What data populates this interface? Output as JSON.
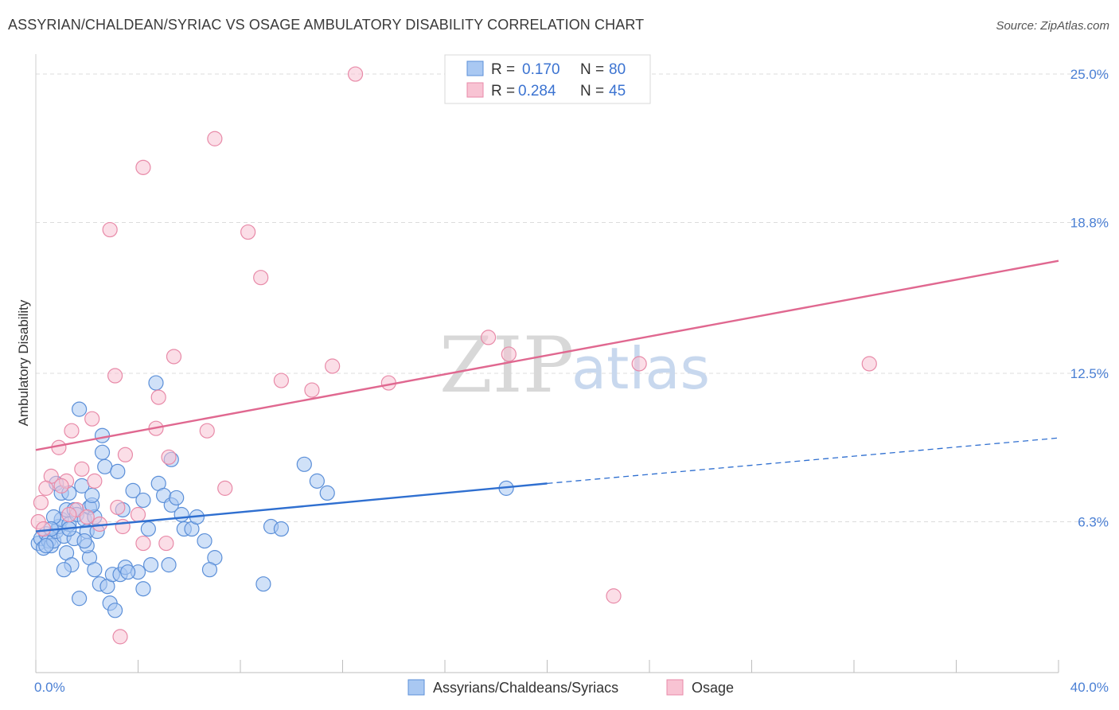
{
  "header": {
    "title": "ASSYRIAN/CHALDEAN/SYRIAC VS OSAGE AMBULATORY DISABILITY CORRELATION CHART",
    "source": "Source: ZipAtlas.com"
  },
  "watermark": {
    "zip": "ZIP",
    "atlas": "atlas"
  },
  "legend": {
    "series": [
      {
        "r_label": "R =",
        "r_value": "0.170",
        "n_label": "N =",
        "n_value": "80"
      },
      {
        "r_label": "R =",
        "r_value": "0.284",
        "n_label": "N =",
        "n_value": "45"
      }
    ]
  },
  "bottom_legend": {
    "items": [
      {
        "label": "Assyrians/Chaldeans/Syriacs"
      },
      {
        "label": "Osage"
      }
    ]
  },
  "chart_data": {
    "type": "scatter",
    "title": "ASSYRIAN/CHALDEAN/SYRIAC VS OSAGE AMBULATORY DISABILITY CORRELATION CHART",
    "xlabel": "",
    "ylabel": "Ambulatory Disability",
    "xlim": [
      0,
      40
    ],
    "ylim": [
      0,
      25.5
    ],
    "x_tick_labels": {
      "min": "0.0%",
      "max": "40.0%"
    },
    "y_ticks": [
      6.3,
      12.5,
      18.8,
      25.0
    ],
    "y_tick_labels": [
      "6.3%",
      "12.5%",
      "18.8%",
      "25.0%"
    ],
    "grid": true,
    "colors": {
      "blue_fill": "#a9c8f2",
      "blue_stroke": "#5b8fd8",
      "blue_line": "#2f6fd0",
      "pink_fill": "#f8c3d3",
      "pink_stroke": "#e88aa8",
      "pink_line": "#e06890",
      "tick_text": "#4a7fd4",
      "grid": "#dcdcdc"
    },
    "series": [
      {
        "name": "Assyrians/Chaldeans/Syriacs",
        "color": "blue",
        "trend": {
          "x0": 0,
          "y0": 5.9,
          "x1": 20,
          "y1": 7.9,
          "dash_x1": 40,
          "dash_y1": 9.8
        },
        "points": [
          [
            0.1,
            5.4
          ],
          [
            0.2,
            5.6
          ],
          [
            0.3,
            5.2
          ],
          [
            0.4,
            5.8
          ],
          [
            0.5,
            5.5
          ],
          [
            0.6,
            5.3
          ],
          [
            0.7,
            5.5
          ],
          [
            0.8,
            5.9
          ],
          [
            0.9,
            6.1
          ],
          [
            1.0,
            6.4
          ],
          [
            0.7,
            6.5
          ],
          [
            1.1,
            5.7
          ],
          [
            1.2,
            6.8
          ],
          [
            1.3,
            6.2
          ],
          [
            0.8,
            7.9
          ],
          [
            1.0,
            7.5
          ],
          [
            1.3,
            7.5
          ],
          [
            1.5,
            6.8
          ],
          [
            1.6,
            6.6
          ],
          [
            1.8,
            7.8
          ],
          [
            1.9,
            6.4
          ],
          [
            2.1,
            6.9
          ],
          [
            2.3,
            6.5
          ],
          [
            2.2,
            7.0
          ],
          [
            2.0,
            5.9
          ],
          [
            1.5,
            5.6
          ],
          [
            1.2,
            5.0
          ],
          [
            1.4,
            4.5
          ],
          [
            1.1,
            4.3
          ],
          [
            2.1,
            4.8
          ],
          [
            2.3,
            4.3
          ],
          [
            2.5,
            3.7
          ],
          [
            2.8,
            3.6
          ],
          [
            3.0,
            4.1
          ],
          [
            3.3,
            4.1
          ],
          [
            3.5,
            4.4
          ],
          [
            4.0,
            4.2
          ],
          [
            4.5,
            4.5
          ],
          [
            4.2,
            3.5
          ],
          [
            3.6,
            4.2
          ],
          [
            1.7,
            11.0
          ],
          [
            2.6,
            9.9
          ],
          [
            2.6,
            9.2
          ],
          [
            2.7,
            8.6
          ],
          [
            3.2,
            8.4
          ],
          [
            3.8,
            7.6
          ],
          [
            4.2,
            7.2
          ],
          [
            4.8,
            7.9
          ],
          [
            5.0,
            7.4
          ],
          [
            5.3,
            7.0
          ],
          [
            5.5,
            7.3
          ],
          [
            5.7,
            6.6
          ],
          [
            5.8,
            6.0
          ],
          [
            6.1,
            6.0
          ],
          [
            6.3,
            6.5
          ],
          [
            6.6,
            5.5
          ],
          [
            7.0,
            4.8
          ],
          [
            6.8,
            4.3
          ],
          [
            5.2,
            4.5
          ],
          [
            4.4,
            6.0
          ],
          [
            3.4,
            6.8
          ],
          [
            2.4,
            5.9
          ],
          [
            2.0,
            5.3
          ],
          [
            2.9,
            2.9
          ],
          [
            3.1,
            2.6
          ],
          [
            1.7,
            3.1
          ],
          [
            1.9,
            5.5
          ],
          [
            4.7,
            12.1
          ],
          [
            5.3,
            8.9
          ],
          [
            10.5,
            8.7
          ],
          [
            11.0,
            8.0
          ],
          [
            11.4,
            7.5
          ],
          [
            9.2,
            6.1
          ],
          [
            9.6,
            6.0
          ],
          [
            8.9,
            3.7
          ],
          [
            18.4,
            7.7
          ],
          [
            0.6,
            6.0
          ],
          [
            0.4,
            5.3
          ],
          [
            1.3,
            6.0
          ],
          [
            2.2,
            7.4
          ]
        ]
      },
      {
        "name": "Osage",
        "color": "pink",
        "trend": {
          "x0": 0,
          "y0": 9.3,
          "x1": 40,
          "y1": 17.2
        },
        "points": [
          [
            12.5,
            25.0
          ],
          [
            7.0,
            22.3
          ],
          [
            4.2,
            21.1
          ],
          [
            2.9,
            18.5
          ],
          [
            8.3,
            18.4
          ],
          [
            8.8,
            16.5
          ],
          [
            17.7,
            14.0
          ],
          [
            18.5,
            13.3
          ],
          [
            23.6,
            12.9
          ],
          [
            32.6,
            12.9
          ],
          [
            5.4,
            13.2
          ],
          [
            3.1,
            12.4
          ],
          [
            9.6,
            12.2
          ],
          [
            11.6,
            12.8
          ],
          [
            10.8,
            11.8
          ],
          [
            13.8,
            12.1
          ],
          [
            4.8,
            11.5
          ],
          [
            6.7,
            10.1
          ],
          [
            4.7,
            10.2
          ],
          [
            2.2,
            10.6
          ],
          [
            1.4,
            10.1
          ],
          [
            0.9,
            9.4
          ],
          [
            3.5,
            9.1
          ],
          [
            5.2,
            9.0
          ],
          [
            1.8,
            8.5
          ],
          [
            0.6,
            8.2
          ],
          [
            1.2,
            8.0
          ],
          [
            2.3,
            8.0
          ],
          [
            0.4,
            7.7
          ],
          [
            1.0,
            7.8
          ],
          [
            7.4,
            7.7
          ],
          [
            0.2,
            7.1
          ],
          [
            1.6,
            6.8
          ],
          [
            3.2,
            6.9
          ],
          [
            4.0,
            6.6
          ],
          [
            2.0,
            6.5
          ],
          [
            2.5,
            6.2
          ],
          [
            0.1,
            6.3
          ],
          [
            0.3,
            6.0
          ],
          [
            4.2,
            5.4
          ],
          [
            5.1,
            5.4
          ],
          [
            22.6,
            3.2
          ],
          [
            3.3,
            1.5
          ],
          [
            1.3,
            6.6
          ],
          [
            3.4,
            6.1
          ]
        ]
      }
    ]
  }
}
